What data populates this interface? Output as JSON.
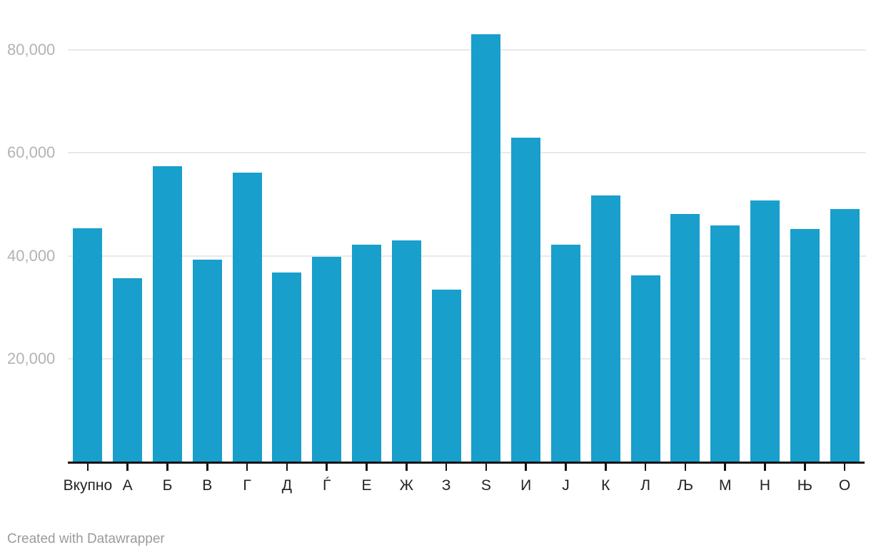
{
  "footer": {
    "credit": "Created with Datawrapper"
  },
  "chart_data": {
    "type": "bar",
    "title": "",
    "xlabel": "",
    "ylabel": "",
    "categories": [
      "Вкупно",
      "А",
      "Б",
      "В",
      "Г",
      "Д",
      "Ѓ",
      "Е",
      "Ж",
      "З",
      "Ѕ",
      "И",
      "Ј",
      "К",
      "Л",
      "Љ",
      "М",
      "Н",
      "Њ",
      "О"
    ],
    "values": [
      45400,
      35600,
      57400,
      39300,
      56200,
      36800,
      39800,
      42100,
      43000,
      33400,
      83100,
      62900,
      42100,
      51800,
      36200,
      48100,
      45900,
      50700,
      45200,
      49100
    ],
    "y_axis": {
      "tick_values": [
        20000,
        40000,
        60000,
        80000
      ],
      "tick_labels": [
        "20,000",
        "40,000",
        "60,000",
        "80,000"
      ],
      "range": [
        0,
        86000
      ],
      "grid": true
    },
    "legend": "none",
    "colors": {
      "bar": "#189fcc",
      "grid": "#e9e9e9",
      "axis": "#111111",
      "y_label": "#b3b3b3",
      "x_label": "#222222",
      "credit": "#9b9b9b",
      "background": "#ffffff"
    }
  }
}
